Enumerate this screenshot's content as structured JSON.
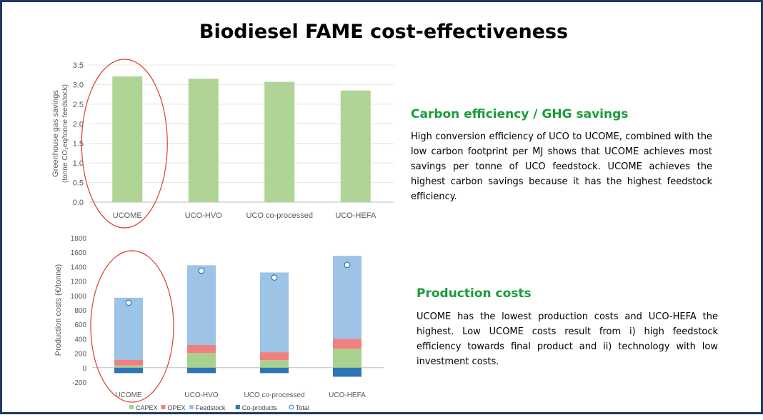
{
  "title": "Biodiesel FAME cost-effectiveness",
  "colors": {
    "ghg_bar": "#afd495",
    "capex": "#a9d18e",
    "opex": "#f08080",
    "feedstock": "#9dc3e6",
    "coproducts": "#2e75b6",
    "total_marker": "#2e75b6",
    "highlight_circle": "#e03c31",
    "heading": "#1a9c3a",
    "border": "#1f3864"
  },
  "sections": {
    "carbon": {
      "heading": "Carbon efficiency / GHG savings",
      "body": "High conversion efficiency of UCO to UCOME, combined with the low carbon footprint per MJ shows that UCOME achieves most savings per tonne of UCO feedstock. UCOME achieves the highest carbon savings because it has the highest feedstock efficiency."
    },
    "costs": {
      "heading": "Production costs",
      "body": "UCOME has the lowest production costs and UCO-HEFA the highest. Low UCOME costs result from i) high feedstock efficiency towards final product and ii) technology with low investment costs."
    }
  },
  "chart_data": [
    {
      "type": "bar",
      "categories": [
        "UCOME",
        "UCO-HVO",
        "UCO co-processed",
        "UCO-HEFA"
      ],
      "values": [
        3.21,
        3.15,
        3.07,
        2.85
      ],
      "ylabel_line1": "Greenhouse gas savings",
      "ylabel_line2": "(tonne CO₂eq/tonne feedstock)",
      "ylim": [
        0,
        3.5
      ],
      "yticks": [
        "0.0",
        "0.5",
        "1.0",
        "1.5",
        "2.0",
        "2.5",
        "3.0",
        "3.5"
      ],
      "grid": true,
      "highlight": "UCOME"
    },
    {
      "type": "bar",
      "stacked": true,
      "categories": [
        "UCOME",
        "UCO-HVO",
        "UCO co-processed",
        "UCO-HEFA"
      ],
      "series": [
        {
          "name": "CAPEX",
          "values": [
            30,
            205,
            105,
            265
          ]
        },
        {
          "name": "OPEX",
          "values": [
            80,
            110,
            110,
            135
          ]
        },
        {
          "name": "Feedstock",
          "values": [
            860,
            1105,
            1105,
            1150
          ]
        },
        {
          "name": "Co-products",
          "values": [
            -75,
            -75,
            -75,
            -125
          ]
        }
      ],
      "total": {
        "name": "Total",
        "values": [
          900,
          1345,
          1250,
          1425
        ]
      },
      "ylabel": "Production costs (€/tonne)",
      "ylim": [
        -200,
        1800
      ],
      "yticks": [
        "-200",
        "0",
        "200",
        "400",
        "600",
        "800",
        "1000",
        "1200",
        "1400",
        "1600",
        "1800"
      ],
      "legend": "bottom",
      "highlight": "UCOME"
    }
  ]
}
